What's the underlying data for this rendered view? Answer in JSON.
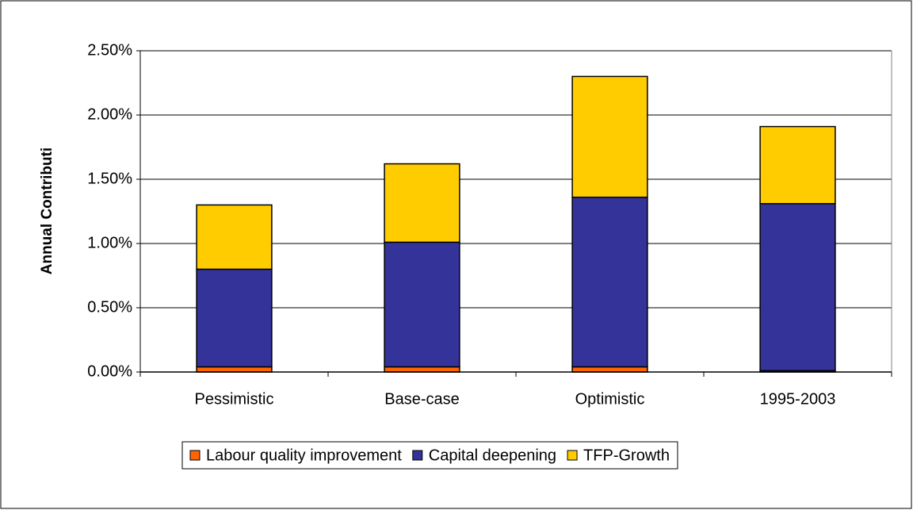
{
  "chart_data": {
    "type": "stacked_bar",
    "ylabel": "Annual Contributi",
    "categories": [
      "Pessimistic",
      "Base-case",
      "Optimistic",
      "1995-2003"
    ],
    "series": [
      {
        "name": "Labour quality improvement",
        "color": "#ff6600",
        "values": [
          0.04,
          0.04,
          0.04,
          0.01
        ]
      },
      {
        "name": "Capital deepening",
        "color": "#333399",
        "values": [
          0.76,
          0.97,
          1.32,
          1.3
        ]
      },
      {
        "name": "TFP-Growth",
        "color": "#ffcc00",
        "values": [
          0.5,
          0.61,
          0.94,
          0.6
        ]
      }
    ],
    "ylim": [
      0,
      2.5
    ],
    "yticks": [
      {
        "value": 0,
        "label": "0.00%"
      },
      {
        "value": 0.5,
        "label": "0.50%"
      },
      {
        "value": 1,
        "label": "1.00%"
      },
      {
        "value": 1.5,
        "label": "1.50%"
      },
      {
        "value": 2,
        "label": "2.00%"
      },
      {
        "value": 2.5,
        "label": "2.50%"
      }
    ],
    "grid": true,
    "legend": "bottom"
  }
}
